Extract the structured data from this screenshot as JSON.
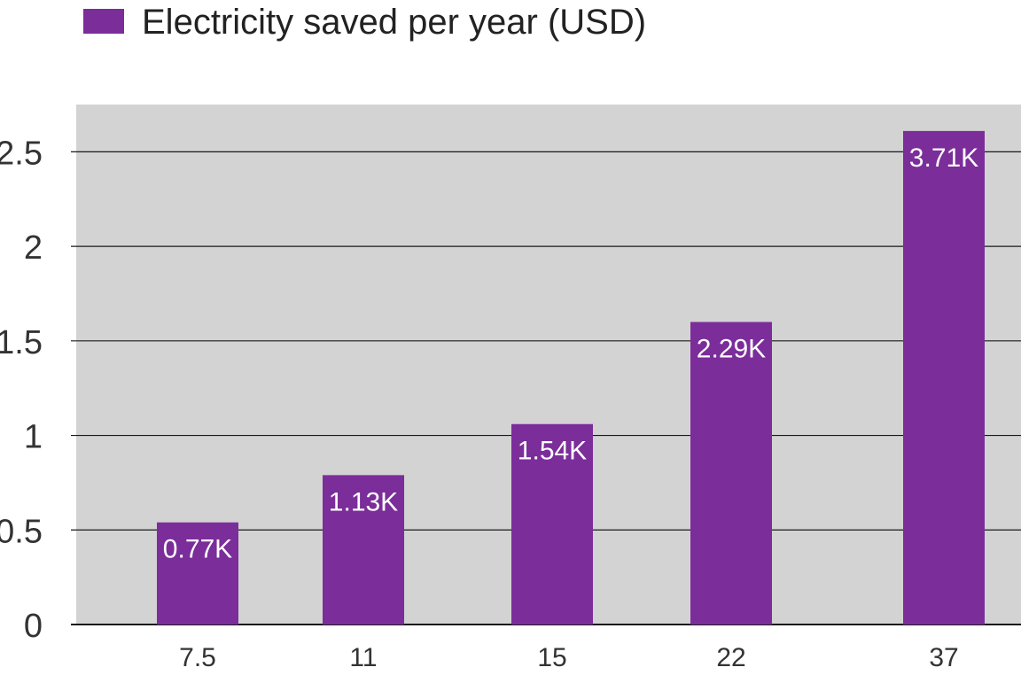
{
  "chart_data": {
    "type": "bar",
    "categories": [
      "7.5",
      "11",
      "15",
      "22",
      "37"
    ],
    "series": [
      {
        "name": "Electricity saved per year (USD)",
        "values": [
          0.54,
          0.79,
          1.06,
          1.6,
          2.61
        ],
        "data_labels": [
          "0.77K",
          "1.13K",
          "1.54K",
          "2.29K",
          "3.71K"
        ]
      }
    ],
    "yticks": [
      "0",
      "0.5",
      "1",
      "1.5",
      "2",
      "2.5"
    ],
    "ylim": [
      0,
      2.75
    ],
    "grid": true,
    "legend_position": "top-left",
    "title": "",
    "xlabel": "",
    "ylabel": ""
  },
  "colors": {
    "bar": "#7b2d9a",
    "plot_background": "#d3d3d3",
    "grid": "#1a1a1a",
    "data_label": "#ffffff"
  }
}
